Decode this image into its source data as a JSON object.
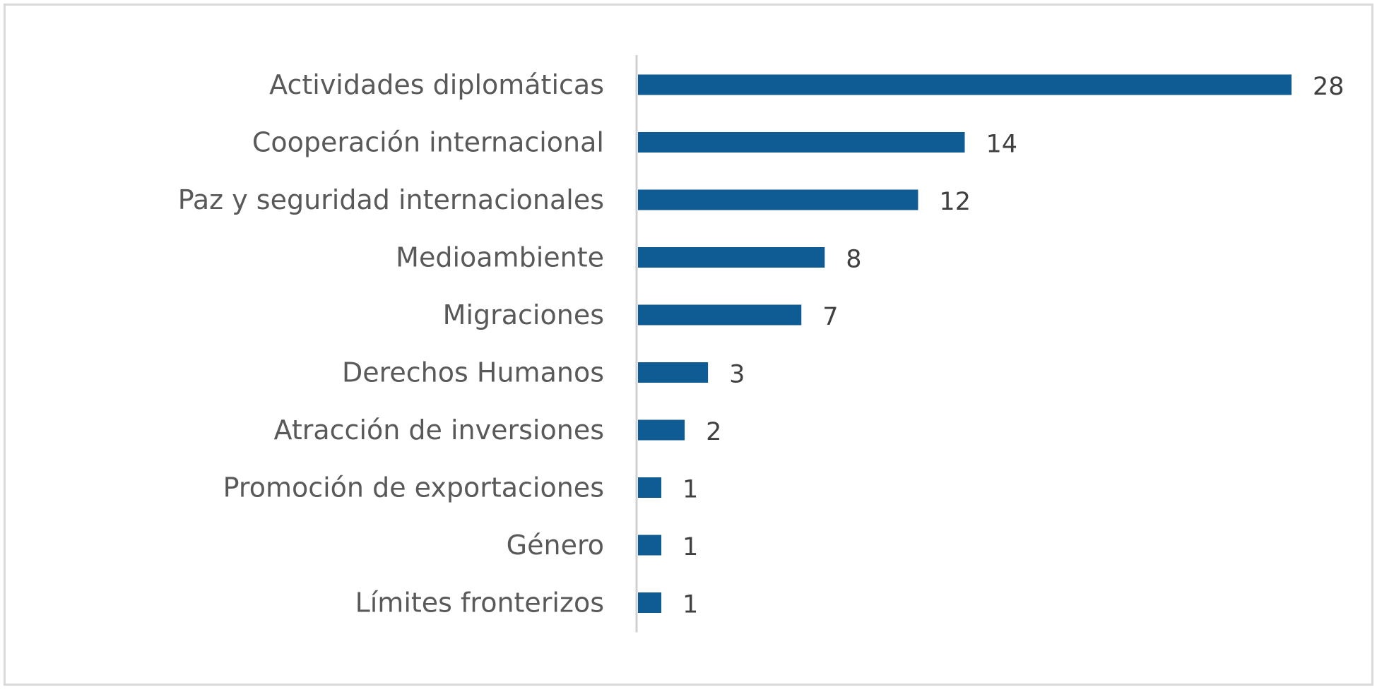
{
  "chart_data": {
    "type": "bar",
    "orientation": "horizontal",
    "categories": [
      "Actividades diplomáticas",
      "Cooperación internacional",
      "Paz y seguridad internacionales",
      "Medioambiente",
      "Migraciones",
      "Derechos Humanos",
      "Atracción de inversiones",
      "Promoción de exportaciones",
      "Género",
      "Límites fronterizos"
    ],
    "values": [
      28,
      14,
      12,
      8,
      7,
      3,
      2,
      1,
      1,
      1
    ],
    "data_labels": [
      "28",
      "14",
      "12",
      "8",
      "7",
      "3",
      "2",
      "1",
      "1",
      "1"
    ],
    "bar_color": "#0f5b94",
    "xlim": [
      0,
      28
    ],
    "grid": false,
    "legend": "none"
  }
}
